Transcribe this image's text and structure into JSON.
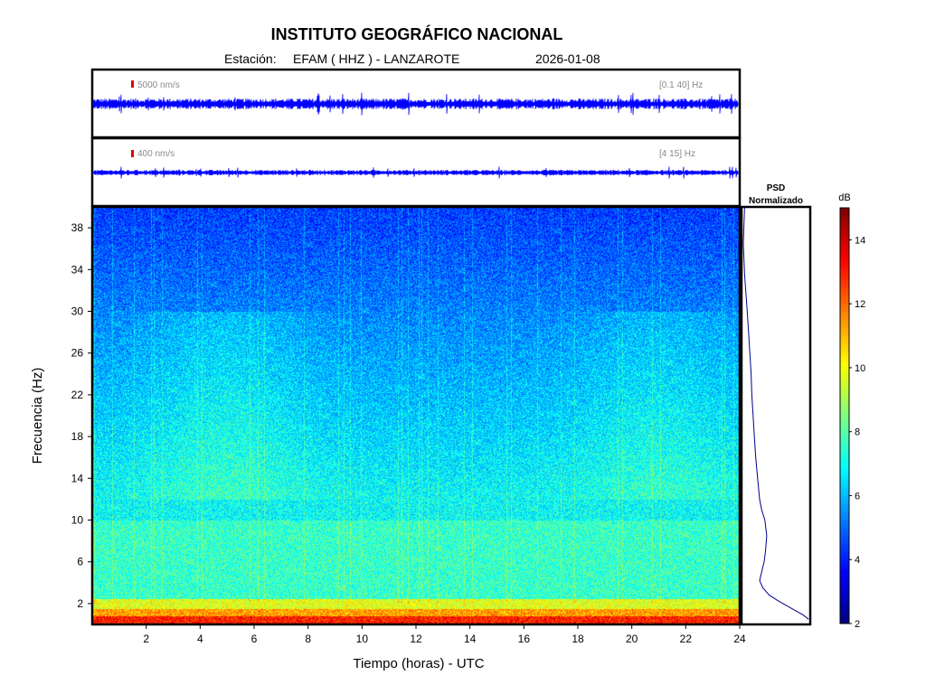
{
  "header": {
    "title": "INSTITUTO GEOGRÁFICO NACIONAL",
    "station_label": "Estación:",
    "station": "EFAM ( HHZ ) - LANZAROTE",
    "date": "2026-01-08"
  },
  "chart_data": [
    {
      "type": "line",
      "panel": "seismogram-broadband",
      "scale_label": "5000 nm/s",
      "band_label": "[0.1 40] Hz",
      "trace_color": "#0000ff",
      "scale_marker_color": "#e00000"
    },
    {
      "type": "line",
      "panel": "seismogram-filtered",
      "scale_label": "400 nm/s",
      "band_label": "[4 15] Hz",
      "trace_color": "#0000ff",
      "scale_marker_color": "#e00000"
    },
    {
      "type": "heatmap",
      "panel": "spectrogram",
      "xlabel": "Tiempo (horas) - UTC",
      "ylabel": "Frecuencia  (Hz)",
      "xlim": [
        0,
        24
      ],
      "ylim": [
        0,
        40
      ],
      "xticks": [
        2,
        4,
        6,
        8,
        10,
        12,
        14,
        16,
        18,
        20,
        22,
        24
      ],
      "yticks": [
        2,
        6,
        10,
        14,
        18,
        22,
        26,
        30,
        34,
        38
      ],
      "colormap": "jet"
    },
    {
      "type": "line",
      "panel": "psd",
      "title_line1": "PSD",
      "title_line2": "Normalizado",
      "ylim": [
        0,
        40
      ],
      "line_color": "#00008b",
      "points": [
        [
          0.02,
          40
        ],
        [
          0.0,
          36.5
        ],
        [
          0.02,
          33.5
        ],
        [
          0.06,
          30.0
        ],
        [
          0.08,
          28.0
        ],
        [
          0.1,
          26.0
        ],
        [
          0.12,
          24.0
        ],
        [
          0.13,
          22.0
        ],
        [
          0.15,
          20.0
        ],
        [
          0.17,
          18.0
        ],
        [
          0.19,
          16.0
        ],
        [
          0.22,
          14.0
        ],
        [
          0.25,
          12.0
        ],
        [
          0.28,
          11.0
        ],
        [
          0.33,
          10.0
        ],
        [
          0.36,
          8.5
        ],
        [
          0.34,
          7.0
        ],
        [
          0.32,
          6.0
        ],
        [
          0.28,
          5.0
        ],
        [
          0.25,
          4.2
        ],
        [
          0.3,
          3.5
        ],
        [
          0.4,
          2.8
        ],
        [
          0.55,
          2.2
        ],
        [
          0.75,
          1.5
        ],
        [
          0.92,
          0.9
        ],
        [
          1.0,
          0.5
        ]
      ]
    },
    {
      "type": "heatmap",
      "panel": "colorbar",
      "unit": "dB",
      "ylim": [
        2,
        15
      ],
      "ticks": [
        2,
        4,
        6,
        8,
        10,
        12,
        14
      ],
      "colormap": "jet"
    }
  ]
}
